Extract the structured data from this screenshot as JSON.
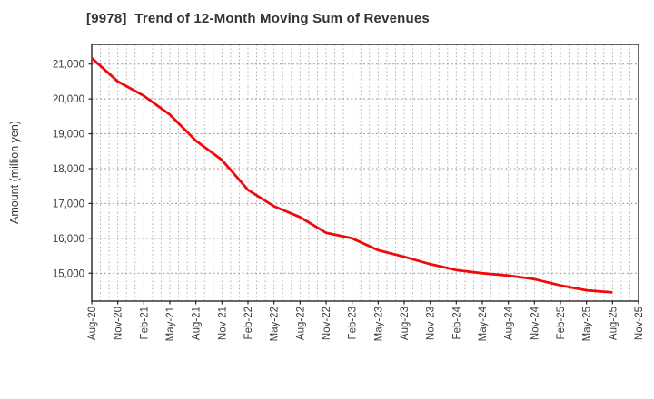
{
  "title": "[9978]  Trend of 12-Month Moving Sum of Revenues",
  "chart_data": {
    "type": "line",
    "title": "[9978]  Trend of 12-Month Moving Sum of Revenues",
    "xlabel": "",
    "ylabel": "Amount (million yen)",
    "x_tick_labels": [
      "Aug-20",
      "Nov-20",
      "Feb-21",
      "May-21",
      "Aug-21",
      "Nov-21",
      "Feb-22",
      "May-22",
      "Aug-22",
      "Nov-22",
      "Feb-23",
      "May-23",
      "Aug-23",
      "Nov-23",
      "Feb-24",
      "May-24",
      "Aug-24",
      "Nov-24",
      "Feb-25",
      "May-25",
      "Aug-25",
      "Nov-25"
    ],
    "x_tick_months": [
      0,
      3,
      6,
      9,
      12,
      15,
      18,
      21,
      24,
      27,
      30,
      33,
      36,
      39,
      42,
      45,
      48,
      51,
      54,
      57,
      60,
      63
    ],
    "xlim_months": [
      0,
      63
    ],
    "y_ticks": [
      15000,
      16000,
      17000,
      18000,
      19000,
      20000,
      21000
    ],
    "ylim": [
      14200,
      21565
    ],
    "grid": {
      "horizontal": true,
      "vertical_monthly": true,
      "style": "dotted"
    },
    "legend": "none",
    "series": [
      {
        "name": "12-month moving sum of revenues",
        "color": "#ee0a0a",
        "x_months": [
          0,
          3,
          6,
          9,
          12,
          15,
          18,
          21,
          24,
          27,
          30,
          33,
          36,
          39,
          42,
          45,
          48,
          51,
          54,
          57,
          60
        ],
        "values": [
          21170,
          20500,
          20090,
          19550,
          18800,
          18250,
          17390,
          16920,
          16610,
          16160,
          16000,
          15660,
          15470,
          15260,
          15090,
          15000,
          14930,
          14830,
          14650,
          14510,
          14450
        ]
      }
    ]
  },
  "colors": {
    "background": "#ffffff",
    "axis_border": "#262626",
    "grid_h": "#9a9a9a",
    "grid_v": "#ababab",
    "tick_text": "#3a3a3a",
    "line": "#ee0a0a"
  }
}
